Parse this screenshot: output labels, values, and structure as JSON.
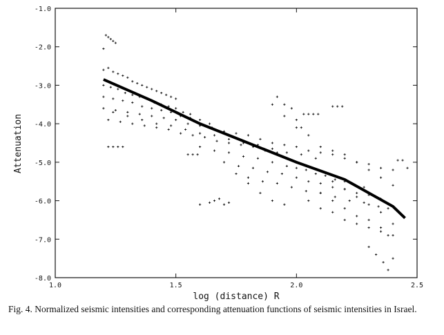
{
  "caption": "Fig. 4.   Normalized seismic intensities and corresponding attenuation functions of seismic intensities in Israel.",
  "chart_data": {
    "type": "scatter",
    "title": "",
    "xlabel": "log (distance) R",
    "ylabel": "Attenuation",
    "xlim": [
      1.0,
      2.5
    ],
    "ylim": [
      -8.0,
      -1.0
    ],
    "x_ticks": [
      1.0,
      1.5,
      2.0,
      2.5
    ],
    "x_tick_labels": [
      "1.0",
      "1.5",
      "2.0",
      "2.5"
    ],
    "y_ticks": [
      -1.0,
      -2.0,
      -3.0,
      -4.0,
      -5.0,
      -6.0,
      -7.0,
      -8.0
    ],
    "y_tick_labels": [
      "-1.0",
      "-2.0",
      "-3.0",
      "-4.0",
      "-5.0",
      "-6.0",
      "-7.0",
      "-8.0"
    ],
    "grid": false,
    "marker_color": "#111111",
    "fit_line": {
      "x": [
        1.2,
        1.4,
        1.6,
        1.8,
        2.0,
        2.2,
        2.4,
        2.45
      ],
      "y": [
        -2.85,
        -3.4,
        -4.0,
        -4.5,
        -5.0,
        -5.45,
        -6.15,
        -6.45
      ]
    },
    "series": [
      {
        "x": [
          1.2,
          1.21,
          1.22,
          1.23,
          1.24,
          1.25,
          1.2,
          1.22,
          1.24,
          1.26,
          1.28,
          1.3,
          1.32,
          1.34,
          1.36,
          1.38,
          1.4,
          1.42,
          1.44,
          1.46,
          1.48,
          1.5,
          1.2,
          1.23,
          1.26,
          1.29,
          1.32,
          1.35,
          1.38,
          1.41,
          1.44,
          1.47,
          1.5,
          1.53,
          1.56,
          1.2,
          1.24,
          1.28,
          1.32,
          1.36,
          1.4,
          1.44,
          1.48,
          1.52,
          1.56,
          1.6,
          1.64,
          1.2,
          1.25,
          1.3,
          1.35,
          1.4,
          1.45,
          1.5,
          1.55,
          1.6,
          1.65,
          1.7,
          1.75,
          1.8,
          1.22,
          1.27,
          1.32,
          1.37,
          1.42,
          1.47,
          1.52,
          1.57,
          1.62,
          1.67,
          1.72,
          1.77,
          1.82,
          1.87,
          1.92,
          1.24,
          1.3,
          1.36,
          1.42,
          1.48,
          1.54,
          1.6,
          1.66,
          1.72,
          1.78,
          1.84,
          1.9,
          1.96,
          2.02,
          2.08,
          1.6,
          1.66,
          1.72,
          1.78,
          1.84,
          1.9,
          1.96,
          2.0,
          2.04,
          2.08,
          2.12,
          2.16,
          2.2,
          2.24,
          2.28,
          1.7,
          1.76,
          1.82,
          1.88,
          1.94,
          2.0,
          2.05,
          2.1,
          2.15,
          2.2,
          2.25,
          2.3,
          2.35,
          1.8,
          1.86,
          1.92,
          1.98,
          2.04,
          2.1,
          2.16,
          2.22,
          2.28,
          2.34,
          2.38,
          1.85,
          1.9,
          1.95,
          2.0,
          2.05,
          2.1,
          2.15,
          2.2,
          2.25,
          2.3,
          2.35,
          2.4,
          1.9,
          1.95,
          2.0,
          2.05,
          2.1,
          2.15,
          2.2,
          2.25,
          2.3,
          2.35,
          2.4,
          2.05,
          2.1,
          2.15,
          2.2,
          2.25,
          2.3,
          2.35,
          2.1,
          2.15,
          2.2,
          2.25,
          2.3,
          2.35,
          2.15,
          2.2,
          2.25,
          2.3,
          2.35,
          2.4,
          1.22,
          1.24,
          1.26,
          1.28,
          1.55,
          1.57,
          1.59,
          1.6,
          1.64,
          1.66,
          1.68,
          1.7,
          1.72,
          2.03,
          2.05,
          2.07,
          2.09,
          2.15,
          2.17,
          2.19,
          2.42,
          2.44,
          2.46,
          2.38,
          2.4,
          1.92,
          1.95,
          1.98,
          2.0,
          2.02,
          1.75,
          1.8,
          1.85,
          1.9,
          1.95,
          2.3,
          2.33,
          2.36,
          2.38,
          2.4
        ],
        "y": [
          -2.05,
          -1.7,
          -1.75,
          -1.8,
          -1.85,
          -1.9,
          -2.6,
          -2.55,
          -2.65,
          -2.7,
          -2.75,
          -2.8,
          -2.9,
          -2.95,
          -3.0,
          -3.05,
          -3.1,
          -3.15,
          -3.2,
          -3.25,
          -3.3,
          -3.35,
          -3.0,
          -3.05,
          -3.1,
          -3.2,
          -3.25,
          -3.3,
          -3.35,
          -3.45,
          -3.5,
          -3.55,
          -3.6,
          -3.7,
          -3.75,
          -3.3,
          -3.35,
          -3.4,
          -3.45,
          -3.55,
          -3.6,
          -3.65,
          -3.7,
          -3.8,
          -3.85,
          -3.9,
          -4.0,
          -3.6,
          -3.65,
          -3.7,
          -3.75,
          -3.8,
          -3.85,
          -3.9,
          -4.0,
          -4.05,
          -4.1,
          -4.2,
          -4.25,
          -4.3,
          -3.9,
          -3.95,
          -4.0,
          -4.05,
          -4.1,
          -4.15,
          -4.25,
          -4.3,
          -4.35,
          -4.45,
          -4.5,
          -4.55,
          -4.6,
          -4.7,
          -4.75,
          -3.7,
          -3.8,
          -3.9,
          -4.0,
          -4.05,
          -4.15,
          -4.25,
          -4.3,
          -4.4,
          -4.5,
          -4.55,
          -4.65,
          -4.75,
          -4.8,
          -4.9,
          -4.6,
          -4.7,
          -4.75,
          -4.85,
          -4.9,
          -5.0,
          -5.1,
          -5.15,
          -5.2,
          -5.3,
          -5.35,
          -5.45,
          -5.5,
          -5.6,
          -5.65,
          -5.0,
          -5.1,
          -5.15,
          -5.25,
          -5.3,
          -5.4,
          -5.5,
          -5.55,
          -5.65,
          -5.7,
          -5.8,
          -5.85,
          -5.95,
          -5.4,
          -5.5,
          -5.55,
          -5.65,
          -5.75,
          -5.8,
          -5.9,
          -6.0,
          -6.05,
          -6.15,
          -6.2,
          -4.4,
          -4.5,
          -4.55,
          -4.6,
          -4.7,
          -4.75,
          -4.8,
          -4.9,
          -5.0,
          -5.05,
          -5.15,
          -5.2,
          -3.5,
          -3.8,
          -4.1,
          -4.3,
          -4.6,
          -4.7,
          -4.8,
          -5.0,
          -5.2,
          -5.4,
          -5.6,
          -6.0,
          -6.2,
          -6.3,
          -6.5,
          -6.6,
          -6.7,
          -6.8,
          -5.8,
          -6.0,
          -6.2,
          -6.4,
          -6.5,
          -6.7,
          -5.5,
          -5.7,
          -5.9,
          -6.1,
          -6.3,
          -6.6,
          -4.6,
          -4.6,
          -4.6,
          -4.6,
          -4.8,
          -4.8,
          -4.8,
          -6.1,
          -6.05,
          -6.0,
          -5.95,
          -6.1,
          -6.05,
          -3.75,
          -3.75,
          -3.75,
          -3.75,
          -3.55,
          -3.55,
          -3.55,
          -4.95,
          -4.95,
          -5.15,
          -6.9,
          -6.9,
          -3.3,
          -3.5,
          -3.6,
          -3.9,
          -4.1,
          -5.3,
          -5.55,
          -5.8,
          -6.0,
          -6.1,
          -7.2,
          -7.4,
          -7.6,
          -7.8,
          -7.5
        ]
      }
    ]
  }
}
